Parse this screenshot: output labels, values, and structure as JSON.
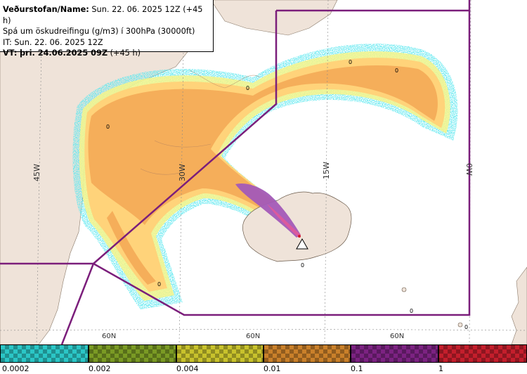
{
  "info": {
    "office": "Veðurstofan/Name:",
    "office_value": "Sun. 22. 06. 2025 12Z (+45 h)",
    "product": "Spá um öskudreifingu (g/m3) í 300hPa (30000ft)",
    "it": "IT: Sun. 22. 06. 2025 12Z",
    "vt_label": "VT:",
    "vt_value": "þri. 24.06.2025 09Z",
    "vt_step": "(+45 h)"
  },
  "longitude_labels": [
    "45W",
    "30W",
    "15W",
    "0W"
  ],
  "latitude_labels": [
    "60N",
    "60N",
    "60N"
  ],
  "zero_markers": [
    "0",
    "0",
    "0",
    "0",
    "0",
    "0",
    "0",
    "0"
  ],
  "legend": {
    "ticks": [
      "0.0002",
      "0.002",
      "0.004",
      "0.01",
      "0.1",
      "1"
    ],
    "colors": [
      "#2bc6c6",
      "#7a9a24",
      "#c8c22c",
      "#c9802a",
      "#7c2282",
      "#c41e2c"
    ]
  },
  "colors": {
    "land": "#efe3d9",
    "ash_low": "#ffd37a",
    "ash_mid": "#f5ae5a",
    "ash_high": "#a35ab8",
    "fringe_yellow": "#f7f58a",
    "fringe_cyan": "#5ee8f0",
    "boundary": "#7b1e7b",
    "volcano_marker": "#ffffff"
  }
}
